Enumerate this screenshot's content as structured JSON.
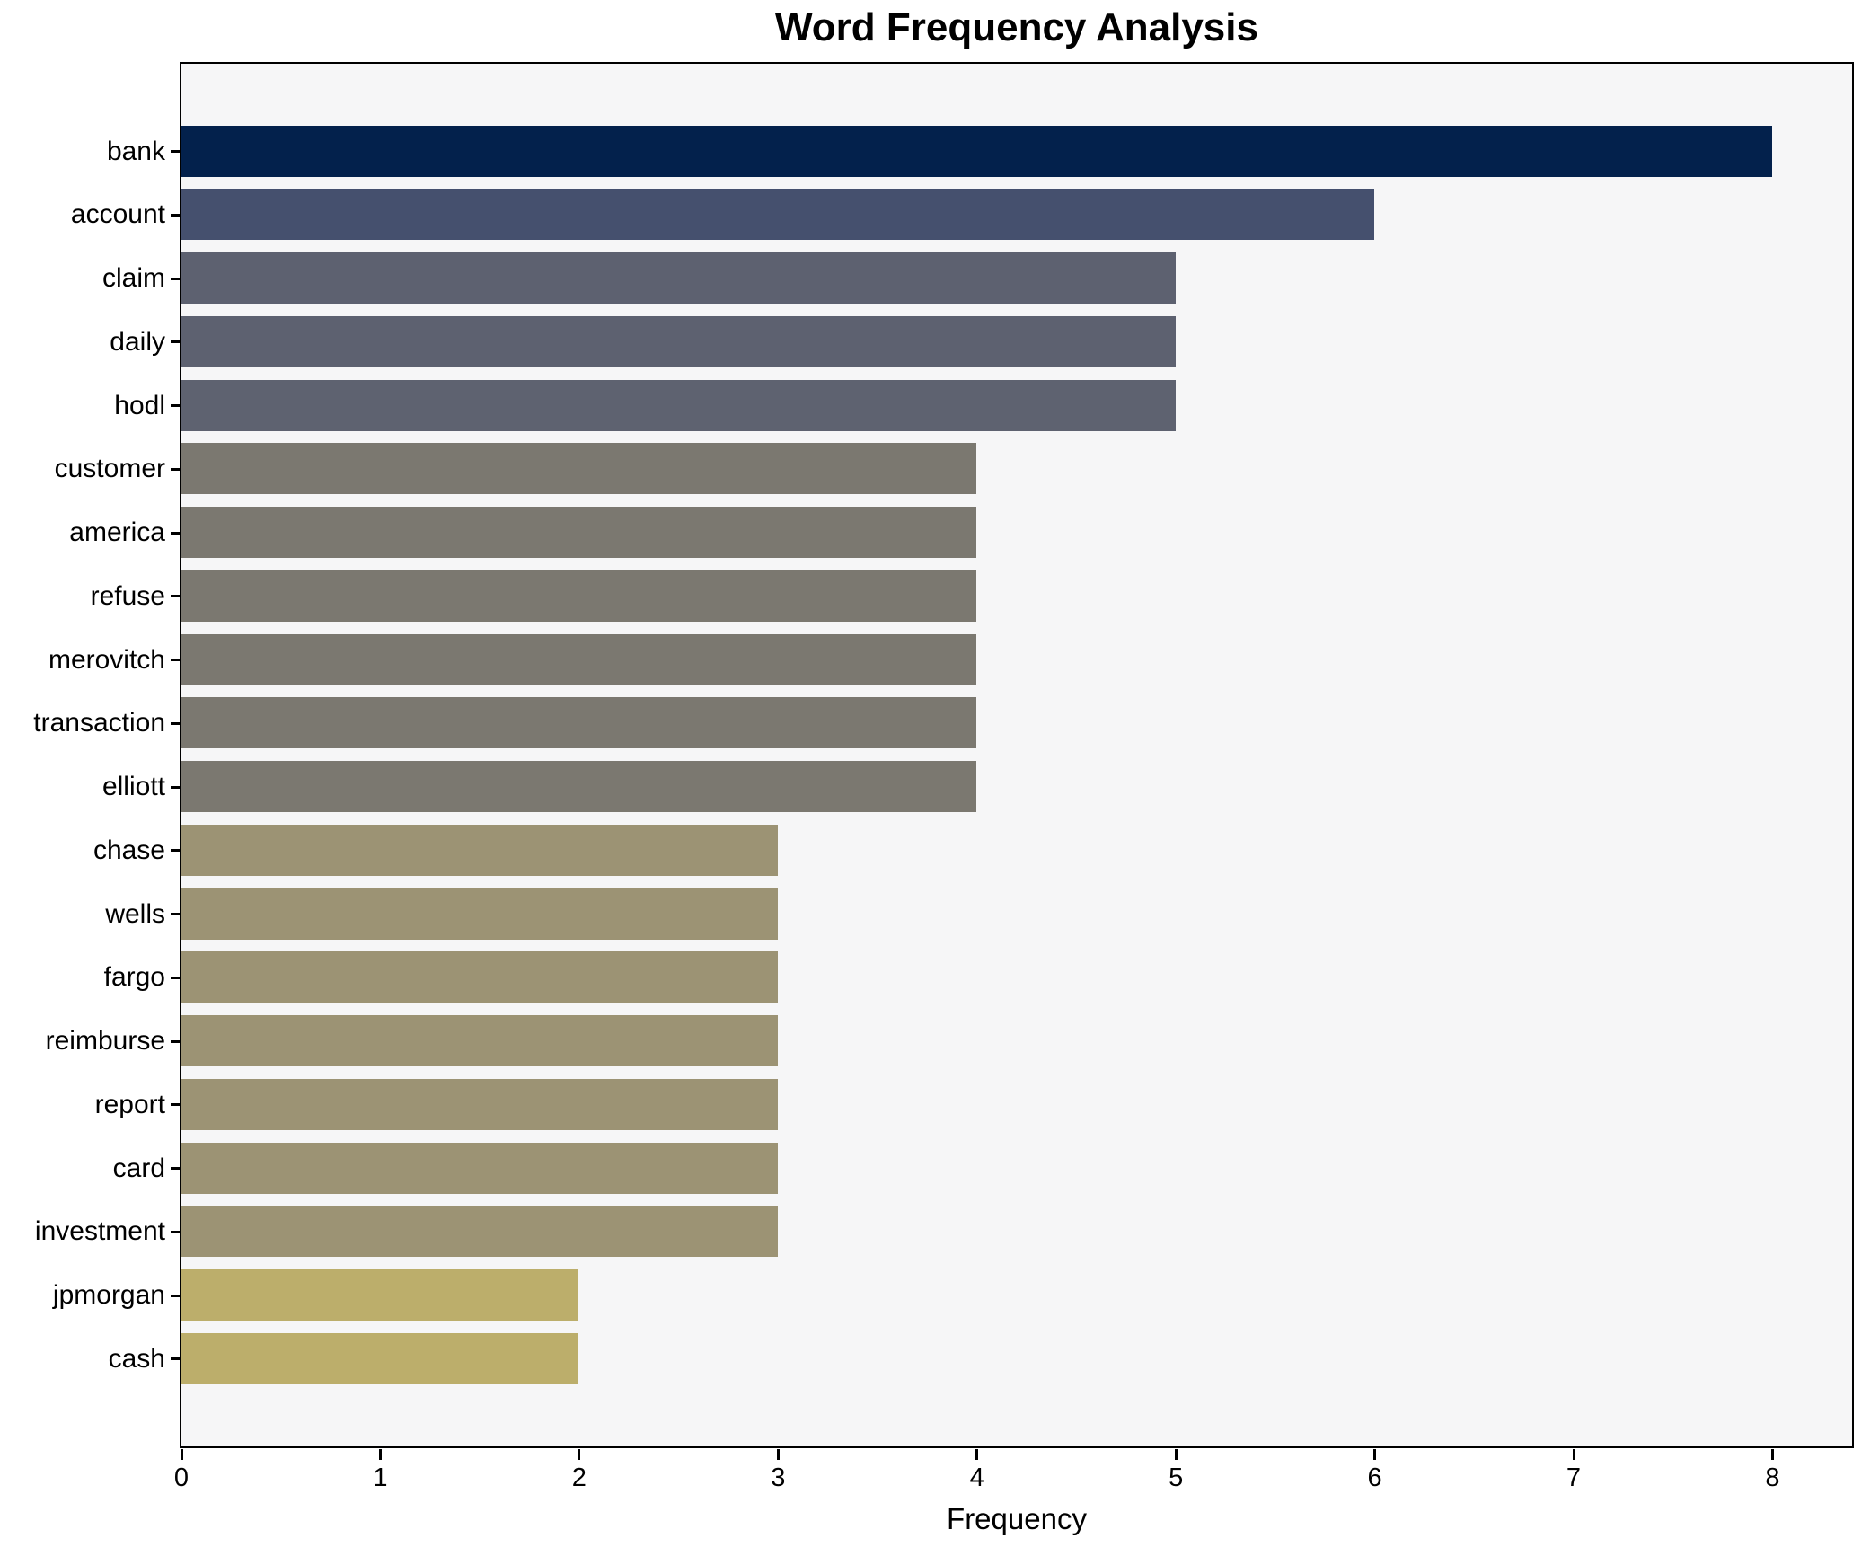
{
  "title": "Word Frequency Analysis",
  "chart_data": {
    "type": "bar",
    "orientation": "horizontal",
    "title": "Word Frequency Analysis",
    "xlabel": "Frequency",
    "ylabel": "",
    "categories": [
      "bank",
      "account",
      "claim",
      "daily",
      "hodl",
      "customer",
      "america",
      "refuse",
      "merovitch",
      "transaction",
      "elliott",
      "chase",
      "wells",
      "fargo",
      "reimburse",
      "report",
      "card",
      "investment",
      "jpmorgan",
      "cash"
    ],
    "values": [
      8,
      6,
      5,
      5,
      5,
      4,
      4,
      4,
      4,
      4,
      4,
      3,
      3,
      3,
      3,
      3,
      3,
      3,
      2,
      2
    ],
    "bar_colors": [
      "#03214c",
      "#45506e",
      "#5d6170",
      "#5d6170",
      "#5e6270",
      "#7b7870",
      "#7b7870",
      "#7b7870",
      "#7b7870",
      "#7b7870",
      "#7b7870",
      "#9c9374",
      "#9c9374",
      "#9c9374",
      "#9c9374",
      "#9c9374",
      "#9c9374",
      "#9c9374",
      "#bcae6b",
      "#bcae6b"
    ],
    "xlim": [
      0,
      8.4
    ],
    "xticks": [
      0,
      1,
      2,
      3,
      4,
      5,
      6,
      7,
      8
    ],
    "grid": false,
    "legend": "none",
    "plot_bg": "#f6f6f7",
    "figure_bg": "#ffffff",
    "axis_color": "#000000"
  }
}
